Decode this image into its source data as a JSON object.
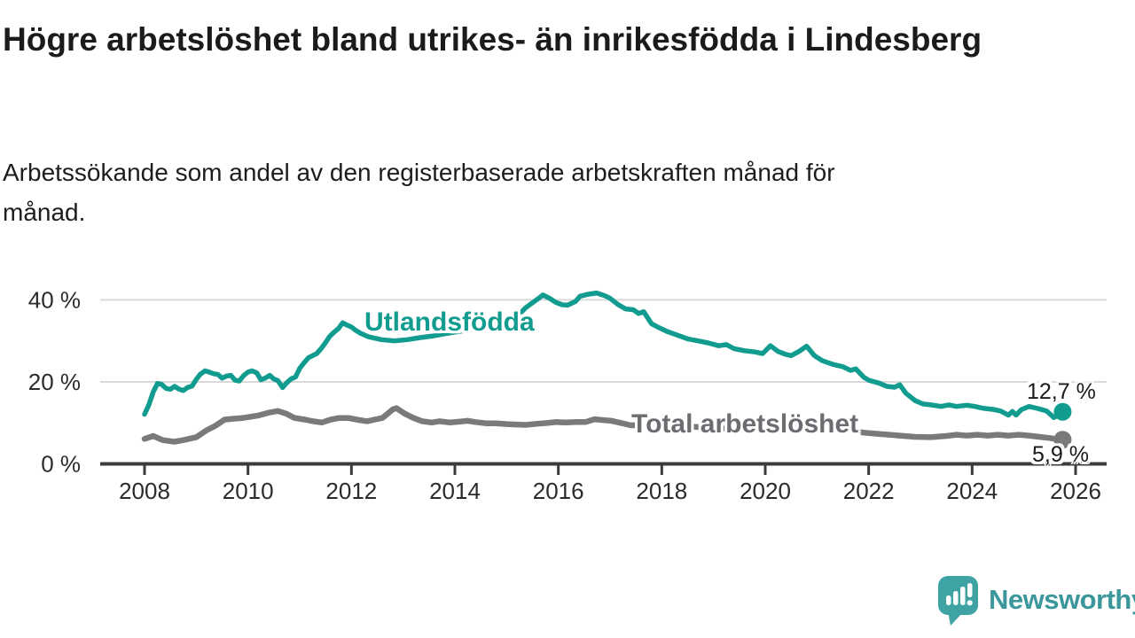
{
  "header": {
    "title": "Högre arbetslöshet bland utrikes- än inrikesfödda i Lindesberg",
    "subtitle": "Arbetssökande som andel av den registerbaserade arbetskraften månad för månad."
  },
  "chart_data": {
    "type": "line",
    "title": "Högre arbetslöshet bland utrikes- än inrikesfödda i Lindesberg",
    "subtitle": "Arbetssökande som andel av den registerbaserade arbetskraften månad för månad.",
    "grid": "horizontal-only",
    "legend_position": "inline-labels-on-lines",
    "x_range": [
      2007.1,
      2026.6
    ],
    "y_range": [
      0,
      45
    ],
    "x_axis": {
      "ticks": [
        {
          "label": "2008",
          "year": 2008
        },
        {
          "label": "2010",
          "year": 2010
        },
        {
          "label": "2012",
          "year": 2012
        },
        {
          "label": "2014",
          "year": 2014
        },
        {
          "label": "2016",
          "year": 2016
        },
        {
          "label": "2018",
          "year": 2018
        },
        {
          "label": "2020",
          "year": 2020
        },
        {
          "label": "2022",
          "year": 2022
        },
        {
          "label": "2024",
          "year": 2024
        },
        {
          "label": "2026",
          "year": 2026
        }
      ]
    },
    "y_axis": {
      "unit": "%",
      "ticks": [
        {
          "label": "0 %",
          "value": 0
        },
        {
          "label": "20 %",
          "value": 20
        },
        {
          "label": "40 %",
          "value": 40
        }
      ]
    },
    "series": [
      {
        "name": "Utlandsfödda",
        "color": "#129c8f",
        "stroke_width": 5.5,
        "end_label": "12,7 %",
        "end_value": 12.7,
        "points": [
          [
            2008.0,
            12.1
          ],
          [
            2008.08,
            14.3
          ],
          [
            2008.17,
            17.6
          ],
          [
            2008.25,
            19.6
          ],
          [
            2008.33,
            19.4
          ],
          [
            2008.42,
            18.4
          ],
          [
            2008.5,
            18.2
          ],
          [
            2008.58,
            18.9
          ],
          [
            2008.67,
            18.2
          ],
          [
            2008.75,
            17.9
          ],
          [
            2008.83,
            18.6
          ],
          [
            2008.92,
            19.0
          ],
          [
            2009.0,
            20.6
          ],
          [
            2009.08,
            21.9
          ],
          [
            2009.17,
            22.7
          ],
          [
            2009.25,
            22.4
          ],
          [
            2009.33,
            22.0
          ],
          [
            2009.42,
            21.8
          ],
          [
            2009.5,
            20.9
          ],
          [
            2009.58,
            21.4
          ],
          [
            2009.67,
            21.6
          ],
          [
            2009.75,
            20.4
          ],
          [
            2009.83,
            20.2
          ],
          [
            2009.92,
            21.6
          ],
          [
            2010.0,
            22.4
          ],
          [
            2010.08,
            22.7
          ],
          [
            2010.17,
            22.2
          ],
          [
            2010.25,
            20.5
          ],
          [
            2010.33,
            20.9
          ],
          [
            2010.42,
            21.6
          ],
          [
            2010.5,
            20.7
          ],
          [
            2010.58,
            20.3
          ],
          [
            2010.67,
            18.6
          ],
          [
            2010.75,
            19.8
          ],
          [
            2010.83,
            20.7
          ],
          [
            2010.92,
            21.2
          ],
          [
            2011.0,
            23.3
          ],
          [
            2011.08,
            24.6
          ],
          [
            2011.17,
            25.9
          ],
          [
            2011.25,
            26.4
          ],
          [
            2011.33,
            26.9
          ],
          [
            2011.42,
            28.2
          ],
          [
            2011.5,
            29.6
          ],
          [
            2011.58,
            31.1
          ],
          [
            2011.67,
            32.2
          ],
          [
            2011.75,
            33.0
          ],
          [
            2011.83,
            34.4
          ],
          [
            2011.92,
            33.8
          ],
          [
            2012.0,
            33.4
          ],
          [
            2012.08,
            32.6
          ],
          [
            2012.17,
            31.9
          ],
          [
            2012.33,
            31.0
          ],
          [
            2012.58,
            30.3
          ],
          [
            2012.83,
            30.0
          ],
          [
            2013.08,
            30.3
          ],
          [
            2013.33,
            30.8
          ],
          [
            2013.58,
            31.2
          ],
          [
            2013.83,
            31.8
          ],
          [
            2014.08,
            32.3
          ],
          [
            2014.33,
            32.8
          ],
          [
            2014.58,
            33.4
          ],
          [
            2014.83,
            34.2
          ],
          [
            2015.08,
            35.3
          ],
          [
            2015.25,
            36.6
          ],
          [
            2015.37,
            38.1
          ],
          [
            2015.5,
            39.3
          ],
          [
            2015.62,
            40.4
          ],
          [
            2015.7,
            41.2
          ],
          [
            2015.83,
            40.4
          ],
          [
            2015.95,
            39.4
          ],
          [
            2016.08,
            38.8
          ],
          [
            2016.18,
            38.7
          ],
          [
            2016.33,
            39.6
          ],
          [
            2016.42,
            40.9
          ],
          [
            2016.55,
            41.3
          ],
          [
            2016.74,
            41.7
          ],
          [
            2016.9,
            41.0
          ],
          [
            2017.0,
            40.4
          ],
          [
            2017.15,
            38.9
          ],
          [
            2017.3,
            37.8
          ],
          [
            2017.45,
            37.6
          ],
          [
            2017.55,
            36.7
          ],
          [
            2017.65,
            37.1
          ],
          [
            2017.8,
            34.2
          ],
          [
            2017.95,
            33.2
          ],
          [
            2018.1,
            32.3
          ],
          [
            2018.3,
            31.4
          ],
          [
            2018.5,
            30.5
          ],
          [
            2018.7,
            30.0
          ],
          [
            2018.9,
            29.5
          ],
          [
            2019.1,
            28.8
          ],
          [
            2019.25,
            29.1
          ],
          [
            2019.4,
            28.1
          ],
          [
            2019.6,
            27.6
          ],
          [
            2019.8,
            27.3
          ],
          [
            2019.95,
            26.9
          ],
          [
            2020.1,
            28.8
          ],
          [
            2020.25,
            27.4
          ],
          [
            2020.4,
            26.7
          ],
          [
            2020.5,
            26.4
          ],
          [
            2020.65,
            27.4
          ],
          [
            2020.8,
            28.7
          ],
          [
            2020.95,
            26.4
          ],
          [
            2021.1,
            25.2
          ],
          [
            2021.3,
            24.3
          ],
          [
            2021.5,
            23.7
          ],
          [
            2021.65,
            22.8
          ],
          [
            2021.75,
            23.2
          ],
          [
            2021.9,
            21.2
          ],
          [
            2022.0,
            20.4
          ],
          [
            2022.2,
            19.7
          ],
          [
            2022.35,
            18.9
          ],
          [
            2022.5,
            18.7
          ],
          [
            2022.6,
            19.3
          ],
          [
            2022.72,
            17.2
          ],
          [
            2022.9,
            15.4
          ],
          [
            2023.05,
            14.6
          ],
          [
            2023.2,
            14.4
          ],
          [
            2023.4,
            14.0
          ],
          [
            2023.55,
            14.4
          ],
          [
            2023.7,
            14.0
          ],
          [
            2023.9,
            14.3
          ],
          [
            2024.05,
            14.0
          ],
          [
            2024.2,
            13.6
          ],
          [
            2024.4,
            13.3
          ],
          [
            2024.55,
            12.9
          ],
          [
            2024.7,
            11.9
          ],
          [
            2024.78,
            12.8
          ],
          [
            2024.85,
            11.9
          ],
          [
            2024.95,
            13.2
          ],
          [
            2025.1,
            14.0
          ],
          [
            2025.27,
            13.5
          ],
          [
            2025.44,
            12.9
          ],
          [
            2025.58,
            11.3
          ],
          [
            2025.67,
            11.9
          ],
          [
            2025.75,
            12.7
          ]
        ]
      },
      {
        "name": "Total arbetslöshet",
        "color": "#7a7a7d",
        "stroke_width": 6.5,
        "end_label": "5,9 %",
        "end_value": 5.9,
        "points": [
          [
            2008.0,
            6.1
          ],
          [
            2008.17,
            6.8
          ],
          [
            2008.35,
            5.8
          ],
          [
            2008.58,
            5.4
          ],
          [
            2008.75,
            5.8
          ],
          [
            2009.0,
            6.5
          ],
          [
            2009.2,
            8.2
          ],
          [
            2009.37,
            9.3
          ],
          [
            2009.55,
            10.8
          ],
          [
            2009.7,
            11.0
          ],
          [
            2009.9,
            11.2
          ],
          [
            2010.05,
            11.5
          ],
          [
            2010.2,
            11.8
          ],
          [
            2010.4,
            12.5
          ],
          [
            2010.58,
            12.9
          ],
          [
            2010.75,
            12.2
          ],
          [
            2010.9,
            11.2
          ],
          [
            2011.1,
            10.8
          ],
          [
            2011.26,
            10.4
          ],
          [
            2011.43,
            10.1
          ],
          [
            2011.6,
            10.8
          ],
          [
            2011.77,
            11.2
          ],
          [
            2011.94,
            11.2
          ],
          [
            2012.1,
            10.8
          ],
          [
            2012.3,
            10.4
          ],
          [
            2012.45,
            10.8
          ],
          [
            2012.6,
            11.2
          ],
          [
            2012.8,
            13.3
          ],
          [
            2012.87,
            13.6
          ],
          [
            2013.04,
            12.2
          ],
          [
            2013.2,
            11.2
          ],
          [
            2013.37,
            10.4
          ],
          [
            2013.55,
            10.1
          ],
          [
            2013.7,
            10.4
          ],
          [
            2013.9,
            10.1
          ],
          [
            2014.1,
            10.3
          ],
          [
            2014.24,
            10.5
          ],
          [
            2014.4,
            10.2
          ],
          [
            2014.6,
            9.9
          ],
          [
            2014.8,
            9.9
          ],
          [
            2015.0,
            9.7
          ],
          [
            2015.2,
            9.6
          ],
          [
            2015.37,
            9.5
          ],
          [
            2015.6,
            9.8
          ],
          [
            2015.8,
            10.0
          ],
          [
            2015.95,
            10.2
          ],
          [
            2016.15,
            10.1
          ],
          [
            2016.35,
            10.2
          ],
          [
            2016.52,
            10.2
          ],
          [
            2016.7,
            10.9
          ],
          [
            2016.85,
            10.7
          ],
          [
            2017.03,
            10.5
          ],
          [
            2017.2,
            10.0
          ],
          [
            2017.4,
            9.4
          ],
          [
            2017.7,
            9.6
          ],
          [
            2018.0,
            9.5
          ],
          [
            2018.4,
            9.2
          ],
          [
            2018.8,
            8.9
          ],
          [
            2019.2,
            8.7
          ],
          [
            2019.6,
            8.6
          ],
          [
            2019.9,
            8.7
          ],
          [
            2020.2,
            9.4
          ],
          [
            2020.5,
            9.7
          ],
          [
            2020.8,
            9.4
          ],
          [
            2021.1,
            8.9
          ],
          [
            2021.4,
            8.4
          ],
          [
            2021.7,
            7.9
          ],
          [
            2022.0,
            7.5
          ],
          [
            2022.2,
            7.3
          ],
          [
            2022.4,
            7.1
          ],
          [
            2022.6,
            6.9
          ],
          [
            2022.9,
            6.6
          ],
          [
            2023.2,
            6.5
          ],
          [
            2023.5,
            6.8
          ],
          [
            2023.7,
            7.1
          ],
          [
            2023.9,
            6.9
          ],
          [
            2024.1,
            7.1
          ],
          [
            2024.3,
            6.9
          ],
          [
            2024.5,
            7.1
          ],
          [
            2024.7,
            6.9
          ],
          [
            2024.9,
            7.1
          ],
          [
            2025.1,
            6.9
          ],
          [
            2025.3,
            6.6
          ],
          [
            2025.5,
            6.3
          ],
          [
            2025.6,
            6.1
          ],
          [
            2025.75,
            5.9
          ]
        ]
      }
    ],
    "colors": {
      "grid": "#d9d9d9",
      "axis": "#3b3b3b",
      "tick_text": "#2b2b2b",
      "teal": "#129c8f",
      "gray": "#7a7a7d"
    }
  },
  "logo": {
    "brand": "Newsworthy",
    "icon": "speech-bubble-bar-chart-exclamation",
    "bubble_color": "#3fa3a3",
    "text_color": "#3b979b"
  }
}
